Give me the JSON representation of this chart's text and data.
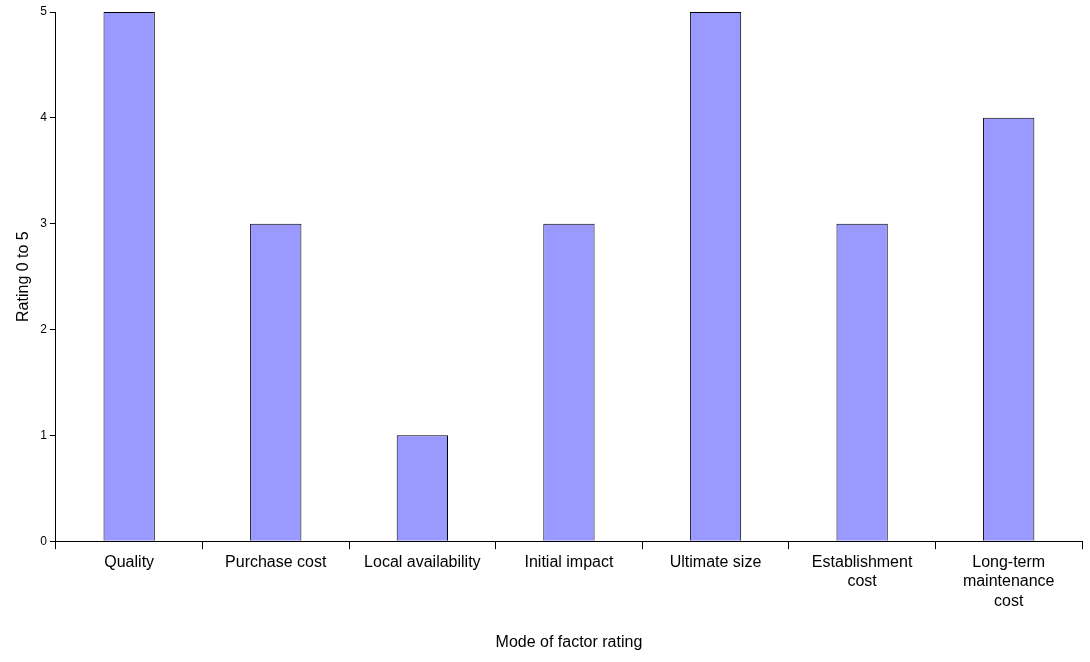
{
  "chart_data": {
    "type": "bar",
    "xlabel": "Mode of factor rating",
    "ylabel": "Rating 0 to 5",
    "categories": [
      "Quality",
      "Purchase cost",
      "Local availability",
      "Initial impact",
      "Ultimate size",
      "Establishment cost",
      "Long-term maintenance cost"
    ],
    "values": [
      5,
      3,
      1,
      3,
      5,
      3,
      4
    ],
    "color": "#9999ff",
    "ylim": [
      0,
      5
    ],
    "yticks": [
      0,
      1,
      2,
      3,
      4,
      5
    ],
    "grid": false,
    "legend": false
  }
}
